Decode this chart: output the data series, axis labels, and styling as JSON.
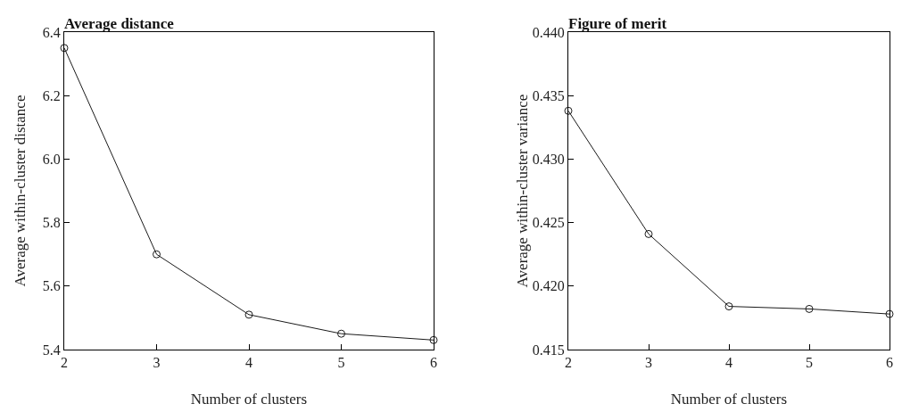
{
  "chart_data": [
    {
      "type": "line",
      "title": "Average distance",
      "xlabel": "Number of clusters",
      "ylabel": "Average within-cluster distance",
      "x": [
        2,
        3,
        4,
        5,
        6
      ],
      "series": [
        {
          "color": "#1a1a1a",
          "values": [
            6.35,
            5.7,
            5.51,
            5.45,
            5.43
          ]
        }
      ],
      "xlim": [
        2,
        6
      ],
      "xticks": [
        2,
        3,
        4,
        5,
        6
      ],
      "ylim": [
        5.4,
        6.4
      ],
      "yticks": [
        5.4,
        5.6,
        5.8,
        {
          "value": 6,
          "label": "6.0"
        },
        6.2,
        6.4
      ],
      "grid": false,
      "marker": "circle",
      "line_style": "solid"
    },
    {
      "type": "line",
      "title": "Figure of merit",
      "xlabel": "Number of clusters",
      "ylabel": "Average within-cluster variance",
      "x": [
        2,
        3,
        4,
        5,
        6
      ],
      "series": [
        {
          "color": "#1a1a1a",
          "values": [
            0.4338,
            0.4241,
            0.4184,
            0.4182,
            0.4178
          ]
        }
      ],
      "xlim": [
        2,
        6
      ],
      "xticks": [
        2,
        3,
        4,
        5,
        6
      ],
      "ylim": [
        0.415,
        0.44
      ],
      "yticks": [
        0.415,
        {
          "value": 0.42,
          "label": "0.420"
        },
        0.425,
        {
          "value": 0.43,
          "label": "0.430"
        },
        0.435,
        {
          "value": 0.44,
          "label": "0.440"
        }
      ],
      "grid": false,
      "marker": "circle",
      "line_style": "solid"
    }
  ]
}
